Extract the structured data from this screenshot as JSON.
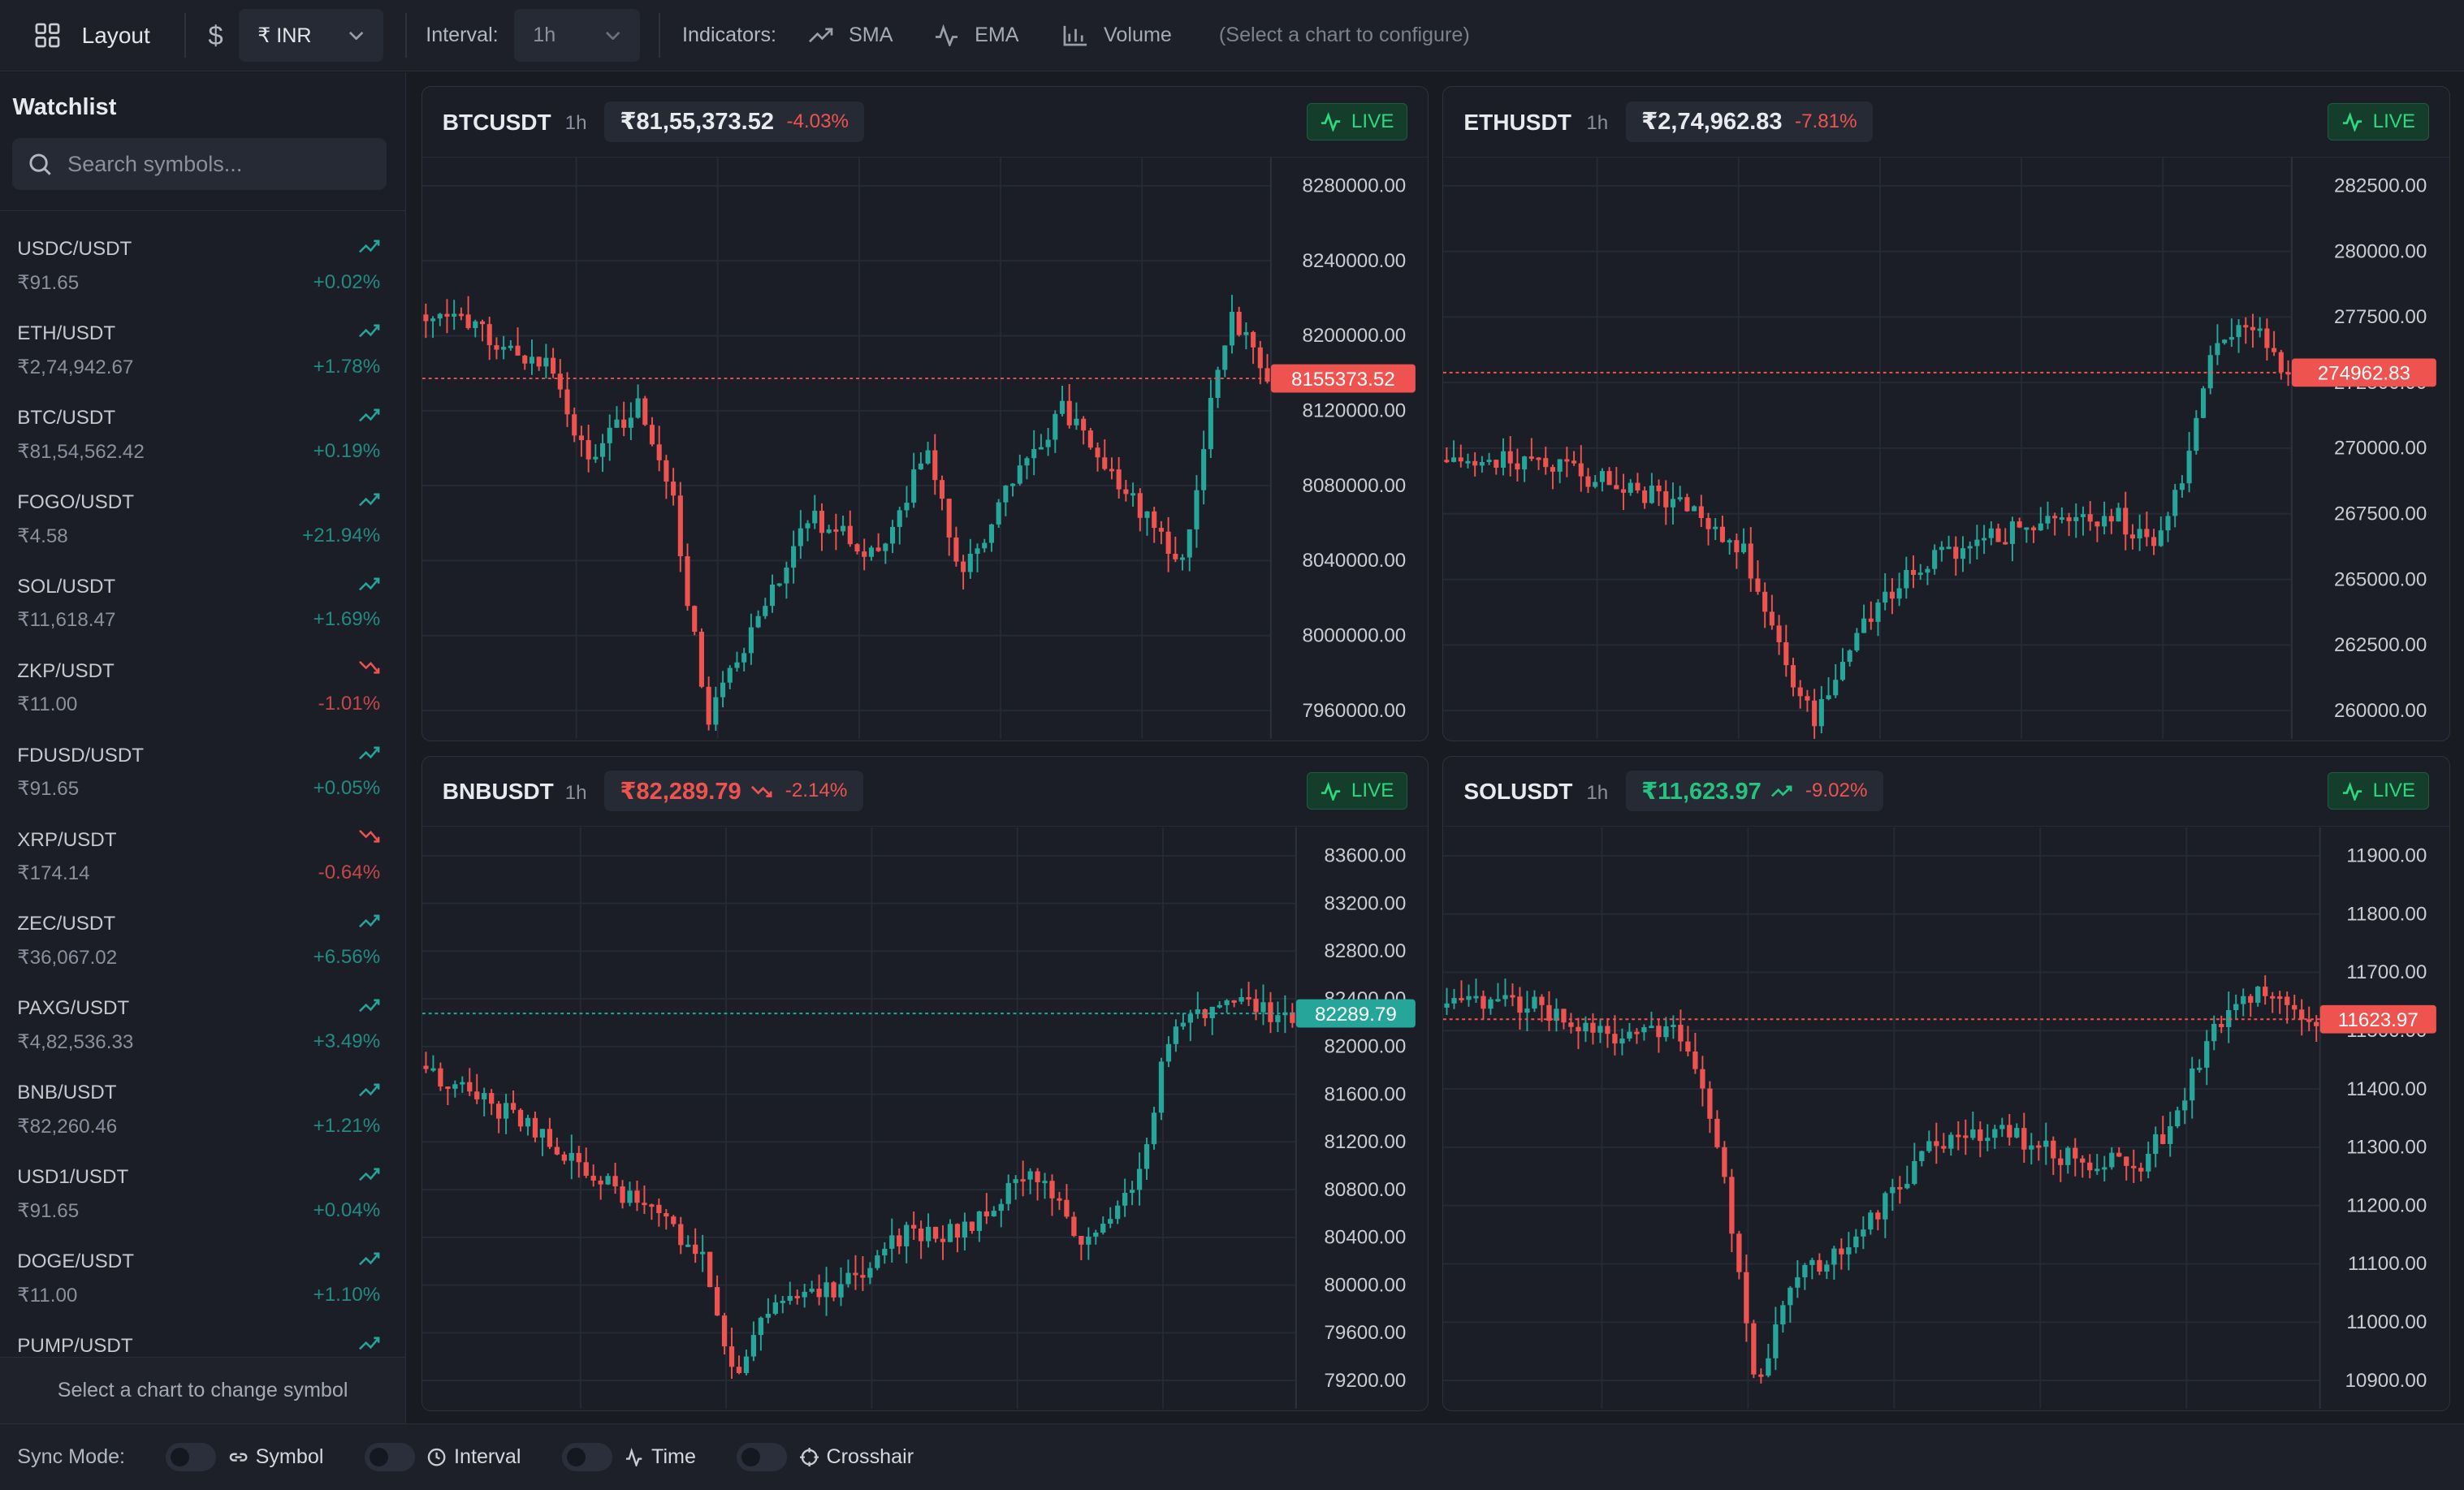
{
  "toolbar": {
    "layout_label": "Layout",
    "currency_label": "₹ INR",
    "interval_label": "Interval:",
    "interval_value": "1h",
    "indicators_label": "Indicators:",
    "indicators": [
      {
        "label": "SMA",
        "icon": "trend-up-icon"
      },
      {
        "label": "EMA",
        "icon": "pulse-icon"
      },
      {
        "label": "Volume",
        "icon": "bar-chart-icon"
      }
    ],
    "hint": "(Select a chart to configure)"
  },
  "sidebar": {
    "title": "Watchlist",
    "search_placeholder": "Search symbols...",
    "items": [
      {
        "symbol": "USDC/USDT",
        "price": "₹91.65",
        "change": "+0.02%",
        "up": true
      },
      {
        "symbol": "ETH/USDT",
        "price": "₹2,74,942.67",
        "change": "+1.78%",
        "up": true
      },
      {
        "symbol": "BTC/USDT",
        "price": "₹81,54,562.42",
        "change": "+0.19%",
        "up": true
      },
      {
        "symbol": "FOGO/USDT",
        "price": "₹4.58",
        "change": "+21.94%",
        "up": true
      },
      {
        "symbol": "SOL/USDT",
        "price": "₹11,618.47",
        "change": "+1.69%",
        "up": true
      },
      {
        "symbol": "ZKP/USDT",
        "price": "₹11.00",
        "change": "-1.01%",
        "up": false
      },
      {
        "symbol": "FDUSD/USDT",
        "price": "₹91.65",
        "change": "+0.05%",
        "up": true
      },
      {
        "symbol": "XRP/USDT",
        "price": "₹174.14",
        "change": "-0.64%",
        "up": false
      },
      {
        "symbol": "ZEC/USDT",
        "price": "₹36,067.02",
        "change": "+6.56%",
        "up": true
      },
      {
        "symbol": "PAXG/USDT",
        "price": "₹4,82,536.33",
        "change": "+3.49%",
        "up": true
      },
      {
        "symbol": "BNB/USDT",
        "price": "₹82,260.46",
        "change": "+1.21%",
        "up": true
      },
      {
        "symbol": "USD1/USDT",
        "price": "₹91.65",
        "change": "+0.04%",
        "up": true
      },
      {
        "symbol": "DOGE/USDT",
        "price": "₹11.00",
        "change": "+1.10%",
        "up": true
      },
      {
        "symbol": "PUMP/USDT",
        "price": "",
        "change": "",
        "up": true
      }
    ],
    "footer": "Select a chart to change symbol"
  },
  "colors": {
    "up": "#26a69a",
    "down": "#ef5350",
    "live": "#2bd97f"
  },
  "panels": [
    {
      "symbol": "BTCUSDT",
      "interval": "1h",
      "price": "₹81,55,373.52",
      "change": "-4.03%",
      "price_color": "#e8eaee",
      "trend_arrow": "",
      "live": "LIVE",
      "current_label": "8155373.52",
      "current_color": "#ef5350",
      "yticks": [
        "8280000.00",
        "8240000.00",
        "8200000.00",
        "8120000.00",
        "8080000.00",
        "8040000.00",
        "8000000.00",
        "7960000.00"
      ]
    },
    {
      "symbol": "ETHUSDT",
      "interval": "1h",
      "price": "₹2,74,962.83",
      "change": "-7.81%",
      "price_color": "#e8eaee",
      "trend_arrow": "",
      "live": "LIVE",
      "current_label": "274962.83",
      "current_color": "#ef5350",
      "yticks": [
        "282500.00",
        "280000.00",
        "277500.00",
        "272500.00",
        "270000.00",
        "267500.00",
        "265000.00",
        "262500.00",
        "260000.00"
      ]
    },
    {
      "symbol": "BNBUSDT",
      "interval": "1h",
      "price": "₹82,289.79",
      "change": "-2.14%",
      "price_color": "#ef5350",
      "trend_arrow": "down",
      "live": "LIVE",
      "current_label": "82289.79",
      "current_color": "#26a69a",
      "yticks": [
        "83600.00",
        "83200.00",
        "82800.00",
        "82400.00",
        "82000.00",
        "81600.00",
        "81200.00",
        "80800.00",
        "80400.00",
        "80000.00",
        "79600.00",
        "79200.00"
      ]
    },
    {
      "symbol": "SOLUSDT",
      "interval": "1h",
      "price": "₹11,623.97",
      "change": "-9.02%",
      "price_color": "#26c281",
      "trend_arrow": "up",
      "live": "LIVE",
      "current_label": "11623.97",
      "current_color": "#ef5350",
      "yticks": [
        "11900.00",
        "11800.00",
        "11700.00",
        "11500.00",
        "11400.00",
        "11300.00",
        "11200.00",
        "11100.00",
        "11000.00",
        "10900.00"
      ]
    }
  ],
  "bottombar": {
    "label": "Sync Mode:",
    "options": [
      {
        "label": "Symbol",
        "icon": "link-icon"
      },
      {
        "label": "Interval",
        "icon": "clock-icon"
      },
      {
        "label": "Time",
        "icon": "pulse-icon"
      },
      {
        "label": "Crosshair",
        "icon": "crosshair-icon"
      }
    ]
  }
}
